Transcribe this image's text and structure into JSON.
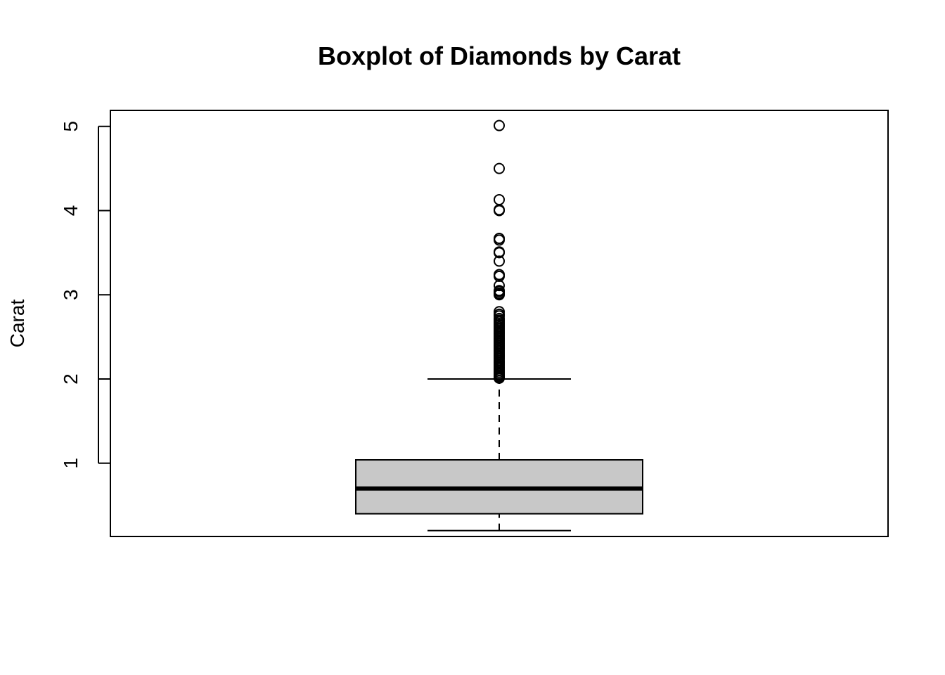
{
  "chart_data": {
    "type": "boxplot",
    "title": "Boxplot of Diamonds by Carat",
    "xlabel": "",
    "ylabel": "Carat",
    "ylim": [
      0.13,
      5.19
    ],
    "yticks": [
      1,
      2,
      3,
      4,
      5
    ],
    "grid": false,
    "box": {
      "whisker_low": 0.2,
      "q1": 0.4,
      "median": 0.7,
      "q3": 1.04,
      "whisker_high": 2.0,
      "fill": "#c8c8c8"
    },
    "outliers": [
      5.01,
      4.5,
      4.13,
      4.01,
      4.0,
      3.67,
      3.65,
      3.51,
      3.5,
      3.4,
      3.24,
      3.22,
      3.11,
      3.05,
      3.04,
      3.02,
      3.01,
      3.0,
      2.8,
      2.77,
      2.75,
      2.72,
      2.7,
      2.68,
      2.66,
      2.64,
      2.62,
      2.6,
      2.58,
      2.56,
      2.54,
      2.52,
      2.5,
      2.48,
      2.46,
      2.44,
      2.42,
      2.4,
      2.38,
      2.36,
      2.34,
      2.32,
      2.3,
      2.28,
      2.26,
      2.24,
      2.22,
      2.2,
      2.18,
      2.16,
      2.14,
      2.12,
      2.1,
      2.08,
      2.06,
      2.04,
      2.03,
      2.02,
      2.01
    ]
  }
}
